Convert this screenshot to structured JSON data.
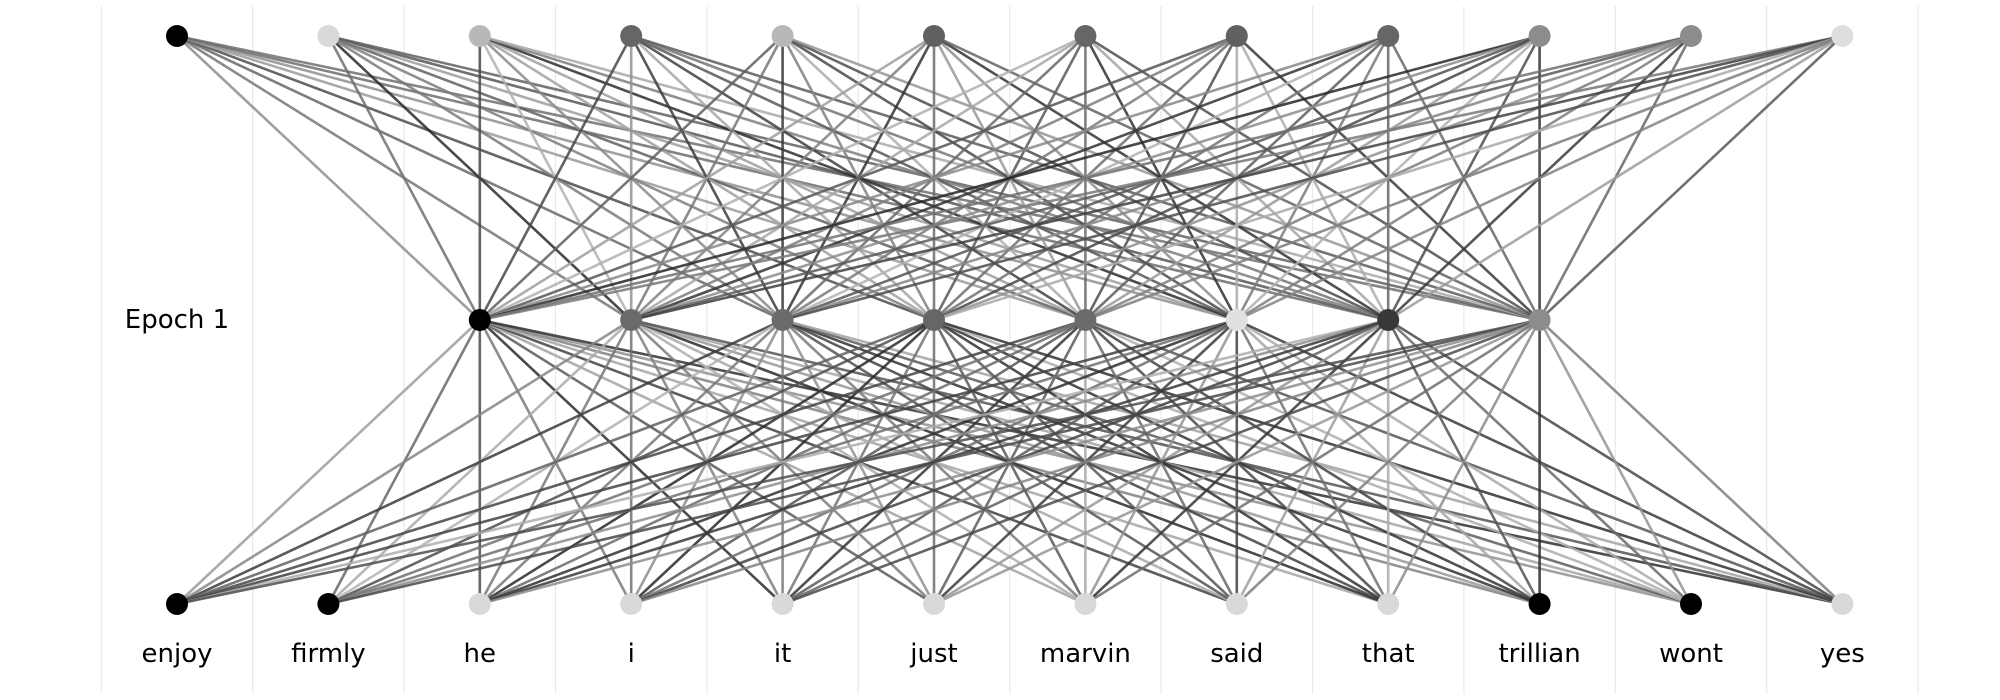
{
  "epoch_label": "Epoch 1",
  "vocabulary": [
    "enjoy",
    "firmly",
    "he",
    "i",
    "it",
    "just",
    "marvin",
    "said",
    "that",
    "trillian",
    "wont",
    "yes"
  ],
  "input_node_gray": [
    0.0,
    0.85,
    0.72,
    0.4,
    0.72,
    0.38,
    0.4,
    0.38,
    0.4,
    0.55,
    0.55,
    0.87
  ],
  "hidden_node_gray": [
    0.0,
    0.42,
    0.42,
    0.4,
    0.42,
    0.88,
    0.22,
    0.55
  ],
  "output_node_gray": [
    0.0,
    0.0,
    0.85,
    0.85,
    0.85,
    0.85,
    0.85,
    0.85,
    0.85,
    0.0,
    0.0,
    0.85
  ]
}
